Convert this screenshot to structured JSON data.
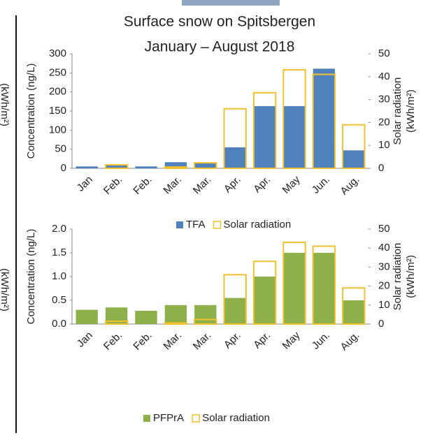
{
  "cropped_labels": [
    "(kWh/m²)",
    "(kWh/m²)"
  ],
  "chart_data": [
    {
      "type": "bar",
      "title": [
        "Surface snow on Spitsbergen",
        "January – August 2018"
      ],
      "ylabel": "Concentration (ng/L)",
      "y2label": [
        "Solar radiation",
        "(kWh/m²)"
      ],
      "categories": [
        "Jan",
        "Feb.",
        "Feb.",
        "Mar.",
        "Mar.",
        "Apr.",
        "Apr.",
        "May",
        "Jun.",
        "Aug."
      ],
      "series": [
        {
          "name": "TFA",
          "color": "#4f81bd",
          "values": [
            5,
            9,
            5,
            16,
            13,
            55,
            163,
            163,
            261,
            47
          ]
        },
        {
          "name": "Solar radiation",
          "color": "#f2c12e",
          "style": "outline",
          "axis": "y2",
          "values": [
            0,
            1.5,
            0,
            0.6,
            2.4,
            26,
            33,
            43,
            41,
            19
          ]
        }
      ],
      "ylim": [
        0,
        300
      ],
      "yticks": [
        0,
        50,
        100,
        150,
        200,
        250,
        300
      ],
      "y2lim": [
        0,
        50
      ],
      "y2ticks": [
        0,
        10,
        20,
        30,
        40,
        50
      ],
      "legend": "bottom",
      "grid": false
    },
    {
      "type": "bar",
      "ylabel": "Concentration (ng/L)",
      "y2label": [
        "Solar radiation",
        "(kWh/m²)"
      ],
      "categories": [
        "Jan",
        "Feb.",
        "Feb.",
        "Mar.",
        "Mar.",
        "Apr.",
        "Apr.",
        "May",
        "Jun.",
        "Aug."
      ],
      "series": [
        {
          "name": "PFPrA",
          "color": "#8db04a",
          "values": [
            0.3,
            0.35,
            0.28,
            0.4,
            0.4,
            0.55,
            1.0,
            1.5,
            1.5,
            0.5
          ]
        },
        {
          "name": "Solar radiation",
          "color": "#f2c12e",
          "style": "outline",
          "axis": "y2",
          "values": [
            0,
            1.5,
            0,
            0.6,
            2.4,
            26,
            33,
            43,
            41,
            19
          ]
        }
      ],
      "ylim": [
        0,
        2
      ],
      "yticks": [
        {
          "value": 0,
          "label": "0.0"
        },
        0.5,
        {
          "value": 1,
          "label": "1.0"
        },
        1.5,
        {
          "value": 2,
          "label": "2.0"
        }
      ],
      "y2lim": [
        0,
        50
      ],
      "y2ticks": [
        0,
        10,
        20,
        30,
        40,
        50
      ],
      "legend": "bottom",
      "grid": false
    }
  ]
}
